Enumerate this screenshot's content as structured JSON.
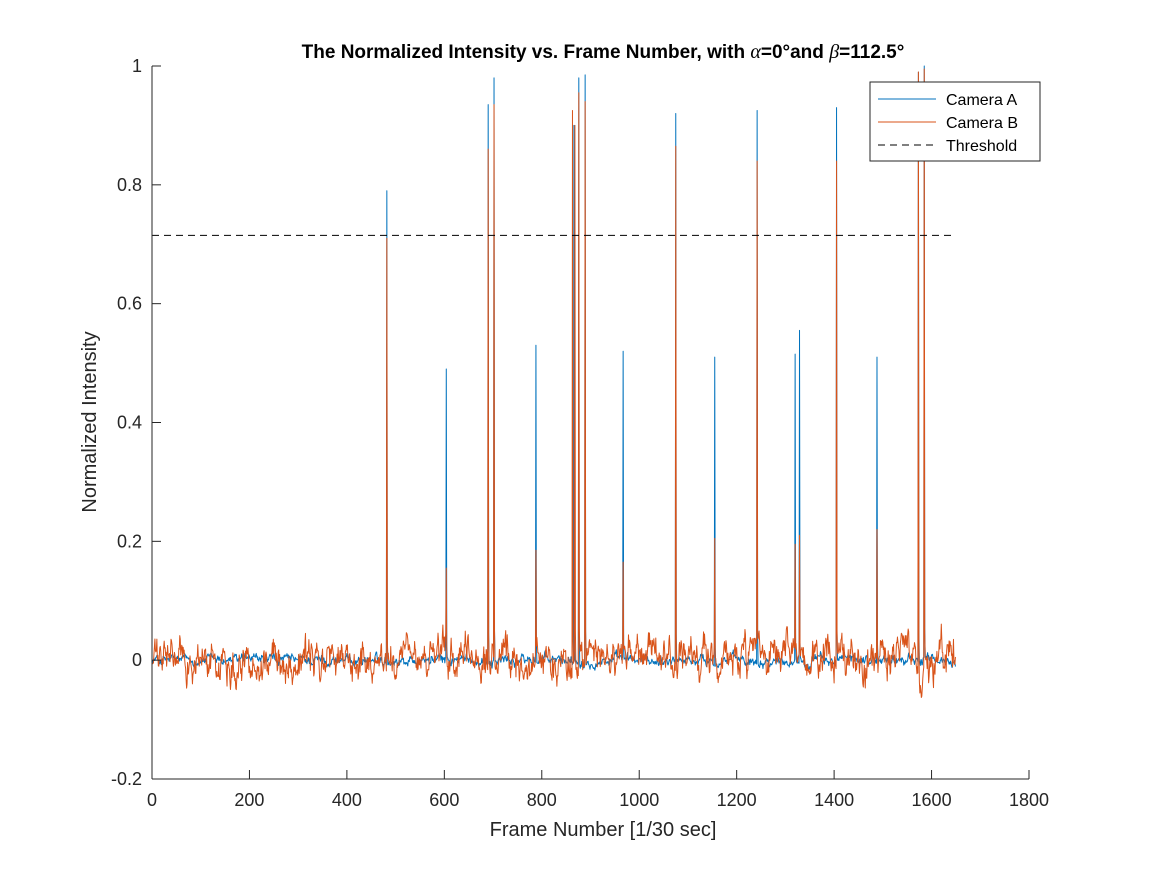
{
  "chart_data": {
    "type": "line",
    "title_parts": [
      "The Normalized Intensity vs. Frame Number, with ",
      "α",
      "=0°and ",
      "β",
      "=112.5°"
    ],
    "xlabel": "Frame Number [1/30 sec]",
    "ylabel": "Normalized Intensity",
    "xlim": [
      0,
      1800
    ],
    "ylim": [
      -0.2,
      1
    ],
    "xticks": [
      0,
      200,
      400,
      600,
      800,
      1000,
      1200,
      1400,
      1600,
      1800
    ],
    "yticks": [
      -0.2,
      0,
      0.2,
      0.4,
      0.6,
      0.8,
      1
    ],
    "ytick_labels": [
      "-0.2",
      "0",
      "0.2",
      "0.4",
      "0.6",
      "0.8",
      "1"
    ],
    "grid": false,
    "legend_position": "top-right",
    "frame_count": 1650,
    "series": [
      {
        "name": "Camera A",
        "color": "#0072BD",
        "style": "solid",
        "noise_amplitude": 0.006,
        "peaks": [
          [
            482,
            0.79
          ],
          [
            604,
            0.49
          ],
          [
            690,
            0.935
          ],
          [
            702,
            0.98
          ],
          [
            788,
            0.53
          ],
          [
            866,
            0.9
          ],
          [
            876,
            0.98
          ],
          [
            889,
            0.985
          ],
          [
            967,
            0.52
          ],
          [
            1075,
            0.92
          ],
          [
            1155,
            0.51
          ],
          [
            1242,
            0.925
          ],
          [
            1320,
            0.515
          ],
          [
            1329,
            0.555
          ],
          [
            1405,
            0.93
          ],
          [
            1488,
            0.51
          ],
          [
            1573,
            0.99
          ],
          [
            1585,
            1.0
          ]
        ]
      },
      {
        "name": "Camera B",
        "color": "#D95319",
        "style": "solid",
        "noise_amplitude": 0.022,
        "peaks": [
          [
            482,
            0.71
          ],
          [
            604,
            0.155
          ],
          [
            690,
            0.86
          ],
          [
            702,
            0.935
          ],
          [
            788,
            0.185
          ],
          [
            863,
            0.925
          ],
          [
            868,
            0.9
          ],
          [
            876,
            0.955
          ],
          [
            889,
            0.94
          ],
          [
            967,
            0.165
          ],
          [
            1075,
            0.865
          ],
          [
            1155,
            0.205
          ],
          [
            1242,
            0.84
          ],
          [
            1320,
            0.195
          ],
          [
            1329,
            0.21
          ],
          [
            1405,
            0.84
          ],
          [
            1488,
            0.22
          ],
          [
            1573,
            0.99
          ],
          [
            1585,
            0.995
          ]
        ]
      },
      {
        "name": "Threshold",
        "color": "#000000",
        "style": "dashed",
        "x": [
          0,
          1650
        ],
        "y": [
          0.715,
          0.715
        ]
      }
    ]
  }
}
